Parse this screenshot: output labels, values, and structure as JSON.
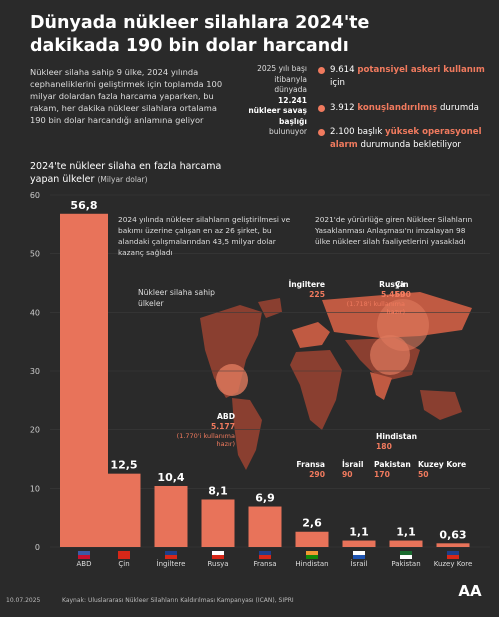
{
  "header": {
    "title": "Dünyada nükleer silahlara 2024'te dakikada 190 bin dolar harcandı",
    "intro": "Nükleer silaha sahip 9 ülke, 2024 yılında cephaneliklerini geliştirmek için toplamda 100 milyar dolardan fazla harcama yaparken, bu rakam, her dakika nükleer silahlara ortalama 190 bin dolar harcandığı anlamına geliyor"
  },
  "warheads": {
    "before": "2025 yılı başı itibarıyla dünyada",
    "total": "12.241 nükleer savaş başlığı",
    "after": "bulunuyor",
    "stats": [
      {
        "number": "9.614",
        "highlight": "potansiyel askeri kullanım",
        "after": "için"
      },
      {
        "number": "3.912",
        "highlight": "konuşlandırılmış",
        "after": "durumda"
      },
      {
        "number": "2.100",
        "before": "başlık",
        "highlight": "yüksek operasyonel alarm",
        "after": "durumunda bekletiliyor"
      }
    ]
  },
  "chart_data": {
    "type": "bar",
    "title": "2024'te nükleer silaha en fazla harcama yapan ülkeler",
    "unit": "(Milyar dolar)",
    "categories": [
      "ABD",
      "Çin",
      "İngiltere",
      "Rusya",
      "Fransa",
      "Hindistan",
      "İsrail",
      "Pakistan",
      "Kuzey Kore"
    ],
    "values": [
      56.8,
      12.5,
      10.4,
      8.1,
      6.9,
      2.6,
      1.1,
      1.1,
      0.63
    ],
    "value_labels": [
      "56,8",
      "12,5",
      "10,4",
      "8,1",
      "6,9",
      "2,6",
      "1,1",
      "1,1",
      "0,63"
    ],
    "color": "#e8735a",
    "ylim": [
      0,
      60
    ],
    "yticks": [
      0,
      10,
      20,
      30,
      40,
      50,
      60
    ],
    "grid": true,
    "annotations": [
      "2024 yılında nükleer silahların geliştirilmesi ve bakımı üzerine çalışan en az 26 şirket, bu alandaki çalışmalarından 43,5 milyar dolar kazanç sağladı",
      "2021'de yürürlüğe giren Nükleer Silahların Yasaklanması Anlaşması'nı imzalayan 98 ülke nükleer silah faaliyetlerini yasakladı"
    ]
  },
  "map": {
    "label": "Nükleer silaha sahip ülkeler",
    "countries": [
      {
        "name": "İngiltere",
        "count": "225"
      },
      {
        "name": "Rusya",
        "count": "5.459",
        "note": "(1.718'i kullanıma hazır)"
      },
      {
        "name": "Çin",
        "count": "600"
      },
      {
        "name": "ABD",
        "count": "5.177",
        "note": "(1.770'i kullanıma hazır)"
      },
      {
        "name": "Fransa",
        "count": "290"
      },
      {
        "name": "İsrail",
        "count": "90"
      },
      {
        "name": "Hindistan",
        "count": "180"
      },
      {
        "name": "Pakistan",
        "count": "170"
      },
      {
        "name": "Kuzey Kore",
        "count": "50"
      }
    ]
  },
  "footer": {
    "date": "10.07.2025",
    "source": "Kaynak: Uluslararası Nükleer Silahların Kaldırılması Kampanyası (ICAN), SIPRI",
    "logo": "AA"
  }
}
